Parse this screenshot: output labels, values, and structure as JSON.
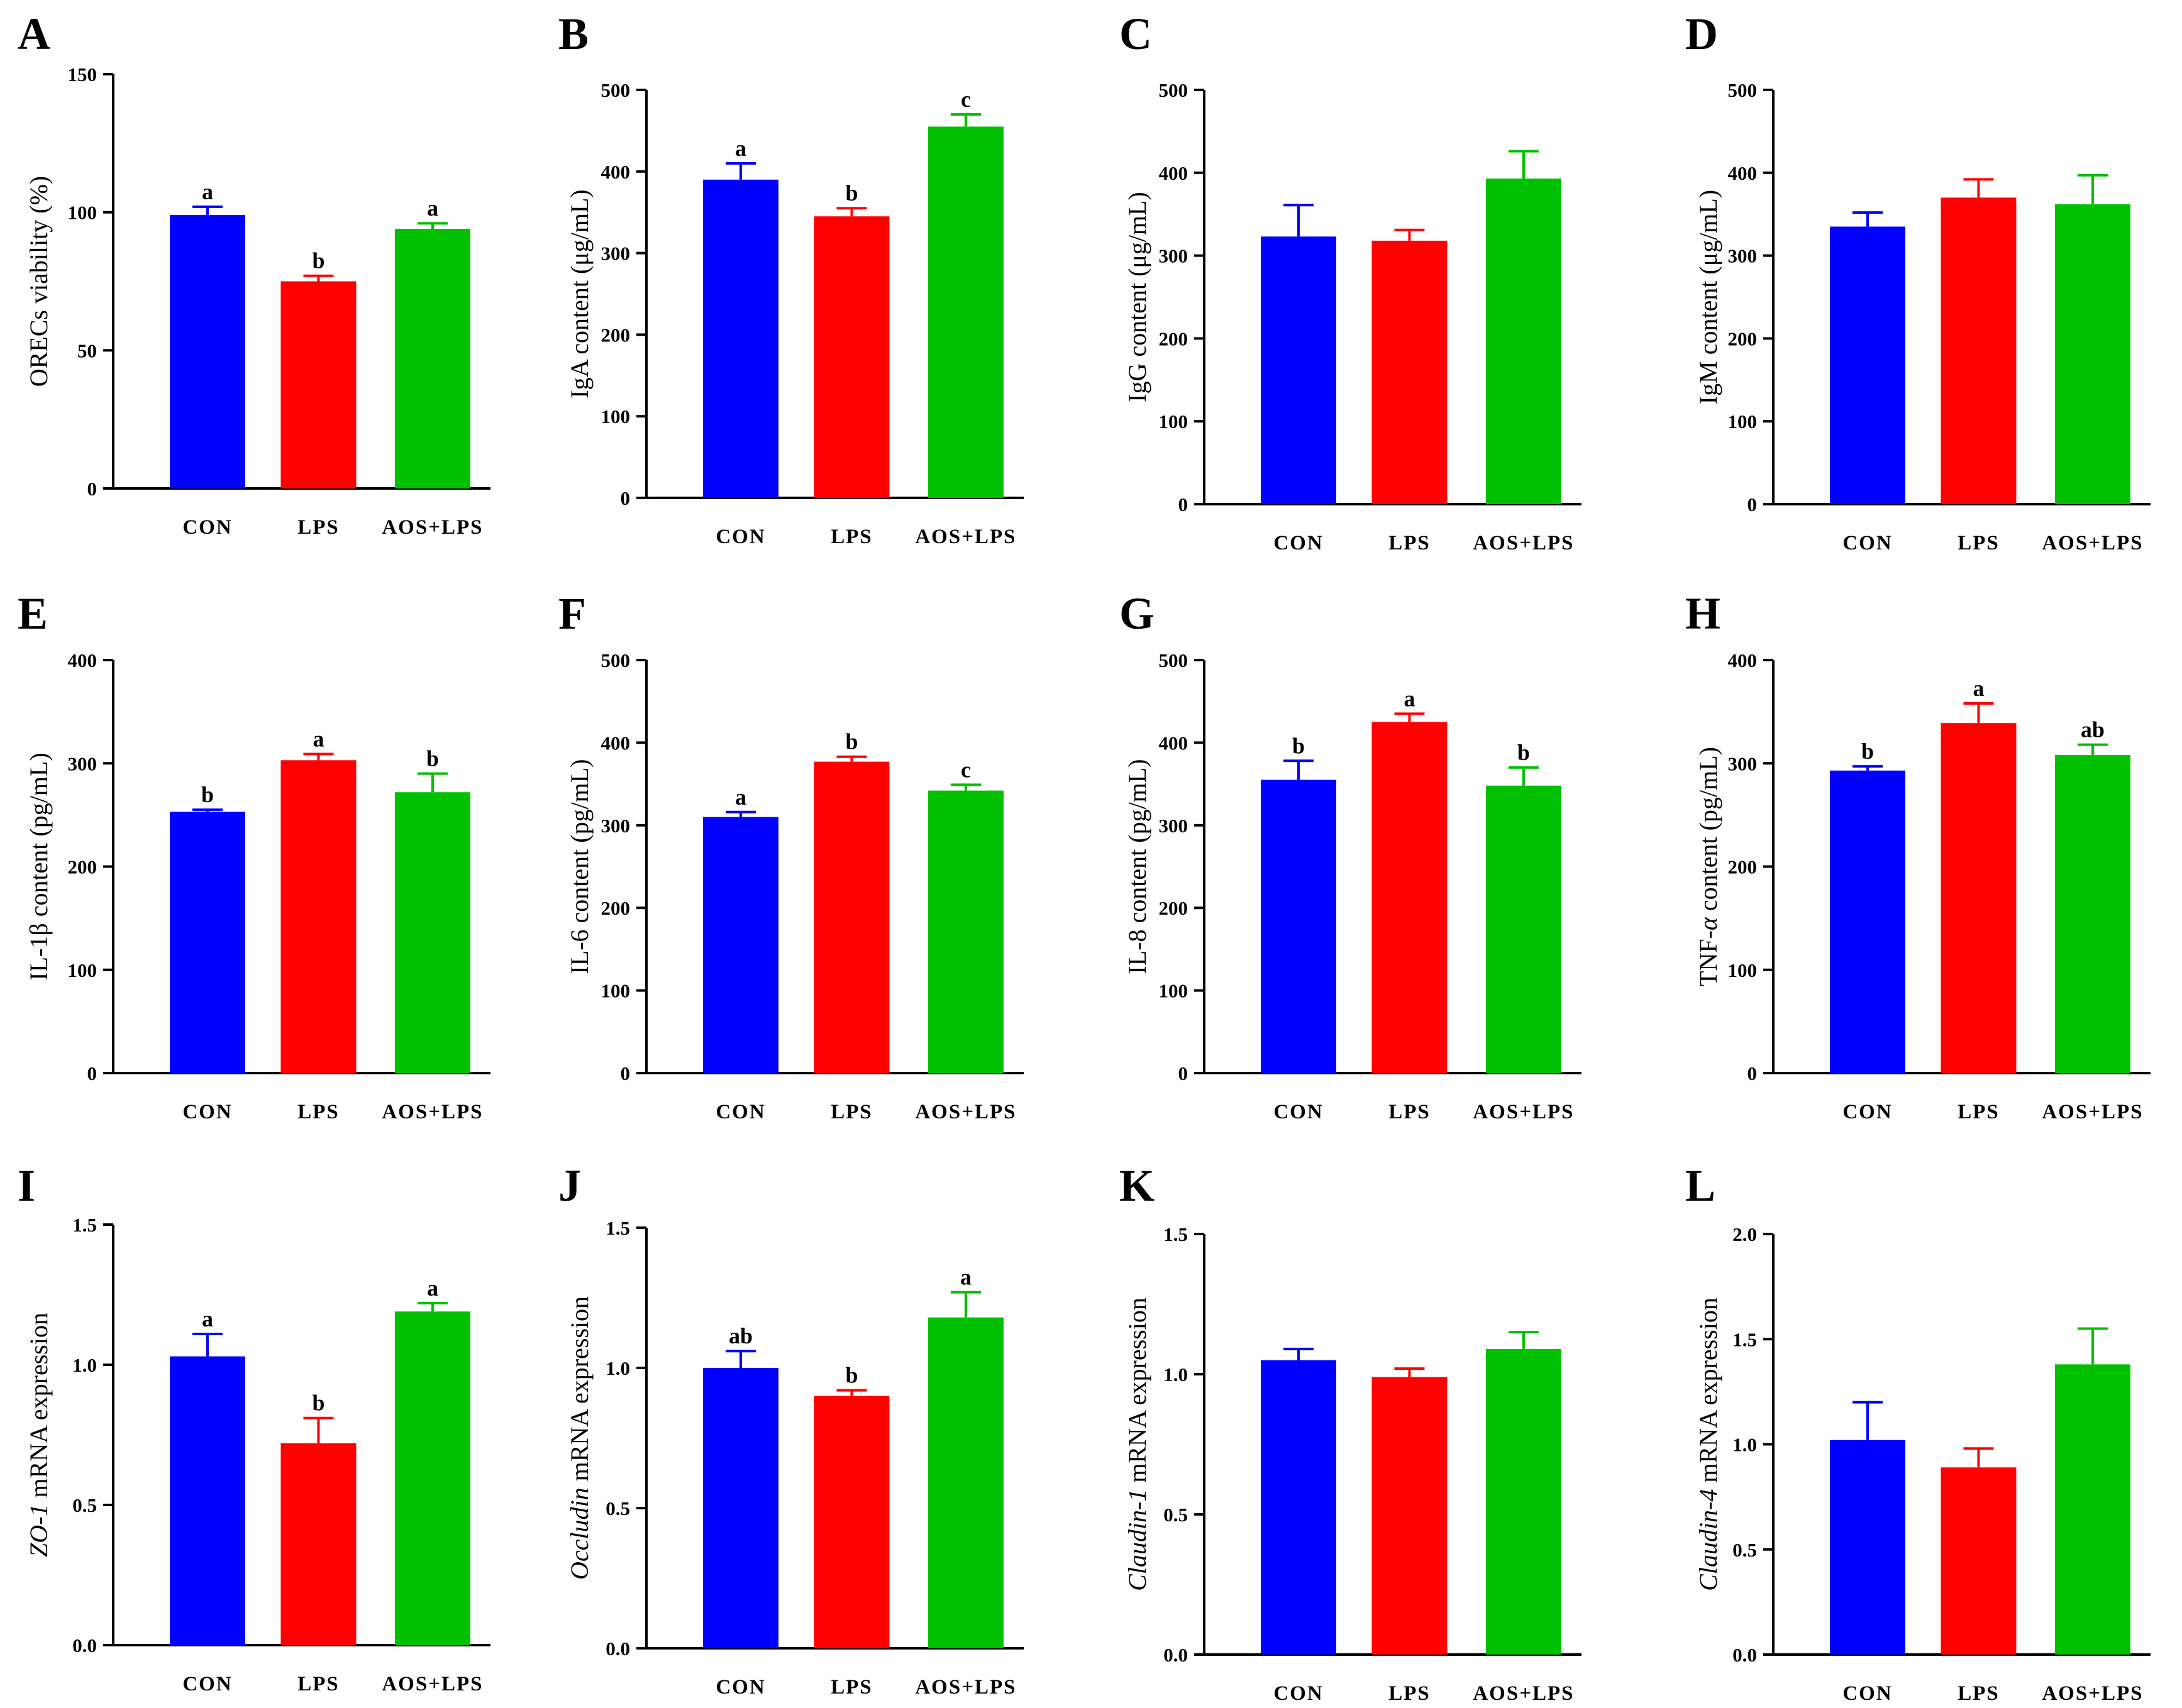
{
  "colors": {
    "CON": "#0000FF",
    "LPS": "#FF0000",
    "AOS+LPS": "#00C000",
    "axis": "#000000"
  },
  "chart_data": [
    {
      "panel": "A",
      "type": "bar",
      "categories": [
        "CON",
        "LPS",
        "AOS+LPS"
      ],
      "values": [
        99,
        75,
        94
      ],
      "errors": [
        3,
        2,
        2
      ],
      "sig": [
        "a",
        "b",
        "a"
      ],
      "ylabel": [
        "OREC",
        "s viability (%)"
      ],
      "ylim": [
        0,
        150
      ],
      "yticks": [
        "0",
        "50",
        "100",
        "150"
      ]
    },
    {
      "panel": "B",
      "type": "bar",
      "categories": [
        "CON",
        "LPS",
        "AOS+LPS"
      ],
      "values": [
        390,
        345,
        455
      ],
      "errors": [
        20,
        10,
        15
      ],
      "sig": [
        "a",
        "b",
        "c"
      ],
      "ylabel": [
        "IgA content (μg/mL)"
      ],
      "ylim": [
        0,
        500
      ],
      "yticks": [
        "0",
        "100",
        "200",
        "300",
        "400",
        "500"
      ]
    },
    {
      "panel": "C",
      "type": "bar",
      "categories": [
        "CON",
        "LPS",
        "AOS+LPS"
      ],
      "values": [
        323,
        318,
        393
      ],
      "errors": [
        38,
        13,
        33
      ],
      "sig": [
        "",
        "",
        ""
      ],
      "ylabel": [
        "IgG content (μg/mL)"
      ],
      "ylim": [
        0,
        500
      ],
      "yticks": [
        "0",
        "100",
        "200",
        "300",
        "400",
        "500"
      ]
    },
    {
      "panel": "D",
      "type": "bar",
      "categories": [
        "CON",
        "LPS",
        "AOS+LPS"
      ],
      "values": [
        335,
        370,
        362
      ],
      "errors": [
        17,
        22,
        35
      ],
      "sig": [
        "",
        "",
        ""
      ],
      "ylabel": [
        "IgM content (μg/mL)"
      ],
      "ylim": [
        0,
        500
      ],
      "yticks": [
        "0",
        "100",
        "200",
        "300",
        "400",
        "500"
      ]
    },
    {
      "panel": "E",
      "type": "bar",
      "categories": [
        "CON",
        "LPS",
        "AOS+LPS"
      ],
      "values": [
        253,
        303,
        272
      ],
      "errors": [
        2,
        6,
        18
      ],
      "sig": [
        "b",
        "a",
        "b"
      ],
      "ylabel": [
        "IL-1β content (pg/mL)"
      ],
      "ylim": [
        0,
        400
      ],
      "yticks": [
        "0",
        "100",
        "200",
        "300",
        "400"
      ]
    },
    {
      "panel": "F",
      "type": "bar",
      "categories": [
        "CON",
        "LPS",
        "AOS+LPS"
      ],
      "values": [
        310,
        377,
        342
      ],
      "errors": [
        6,
        6,
        7
      ],
      "sig": [
        "a",
        "b",
        "c"
      ],
      "ylabel": [
        "IL-6 content (pg/mL)"
      ],
      "ylim": [
        0,
        500
      ],
      "yticks": [
        "0",
        "100",
        "200",
        "300",
        "400",
        "500"
      ]
    },
    {
      "panel": "G",
      "type": "bar",
      "categories": [
        "CON",
        "LPS",
        "AOS+LPS"
      ],
      "values": [
        355,
        425,
        348
      ],
      "errors": [
        23,
        10,
        22
      ],
      "sig": [
        "b",
        "a",
        "b"
      ],
      "ylabel": [
        "IL-8 content (pg/mL)"
      ],
      "ylim": [
        0,
        500
      ],
      "yticks": [
        "0",
        "100",
        "200",
        "300",
        "400",
        "500"
      ]
    },
    {
      "panel": "H",
      "type": "bar",
      "categories": [
        "CON",
        "LPS",
        "AOS+LPS"
      ],
      "values": [
        293,
        339,
        308
      ],
      "errors": [
        4,
        19,
        10
      ],
      "sig": [
        "b",
        "a",
        "ab"
      ],
      "ylabel": [
        "TNF-",
        "α",
        " content (pg/mL)"
      ],
      "ylim": [
        0,
        400
      ],
      "yticks": [
        "0",
        "100",
        "200",
        "300",
        "400"
      ]
    },
    {
      "panel": "I",
      "type": "bar",
      "categories": [
        "CON",
        "LPS",
        "AOS+LPS"
      ],
      "values": [
        1.03,
        0.72,
        1.19
      ],
      "errors": [
        0.08,
        0.09,
        0.03
      ],
      "sig": [
        "a",
        "b",
        "a"
      ],
      "ylabel": [
        "ZO-1",
        " mRNA expression"
      ],
      "ylim": [
        0,
        1.5
      ],
      "yticks": [
        "0.0",
        "0.5",
        "1.0",
        "1.5"
      ]
    },
    {
      "panel": "J",
      "type": "bar",
      "categories": [
        "CON",
        "LPS",
        "AOS+LPS"
      ],
      "values": [
        1.0,
        0.9,
        1.18
      ],
      "errors": [
        0.06,
        0.02,
        0.09
      ],
      "sig": [
        "ab",
        "b",
        "a"
      ],
      "ylabel": [
        "Occludin",
        " mRNA expression"
      ],
      "ylim": [
        0,
        1.5
      ],
      "yticks": [
        "0.0",
        "0.5",
        "1.0",
        "1.5"
      ]
    },
    {
      "panel": "K",
      "type": "bar",
      "categories": [
        "CON",
        "LPS",
        "AOS+LPS"
      ],
      "values": [
        1.05,
        0.99,
        1.09
      ],
      "errors": [
        0.04,
        0.03,
        0.06
      ],
      "sig": [
        "",
        "",
        ""
      ],
      "ylabel": [
        "Claudin-1",
        " mRNA expression"
      ],
      "ylim": [
        0,
        1.5
      ],
      "yticks": [
        "0.0",
        "0.5",
        "1.0",
        "1.5"
      ]
    },
    {
      "panel": "L",
      "type": "bar",
      "categories": [
        "CON",
        "LPS",
        "AOS+LPS"
      ],
      "values": [
        1.02,
        0.89,
        1.38
      ],
      "errors": [
        0.18,
        0.09,
        0.17
      ],
      "sig": [
        "",
        "",
        ""
      ],
      "ylabel": [
        "Claudin-4",
        " mRNA expression"
      ],
      "ylim": [
        0,
        2.0
      ],
      "yticks": [
        "0.0",
        "0.5",
        "1.0",
        "1.5",
        "2.0"
      ]
    }
  ]
}
